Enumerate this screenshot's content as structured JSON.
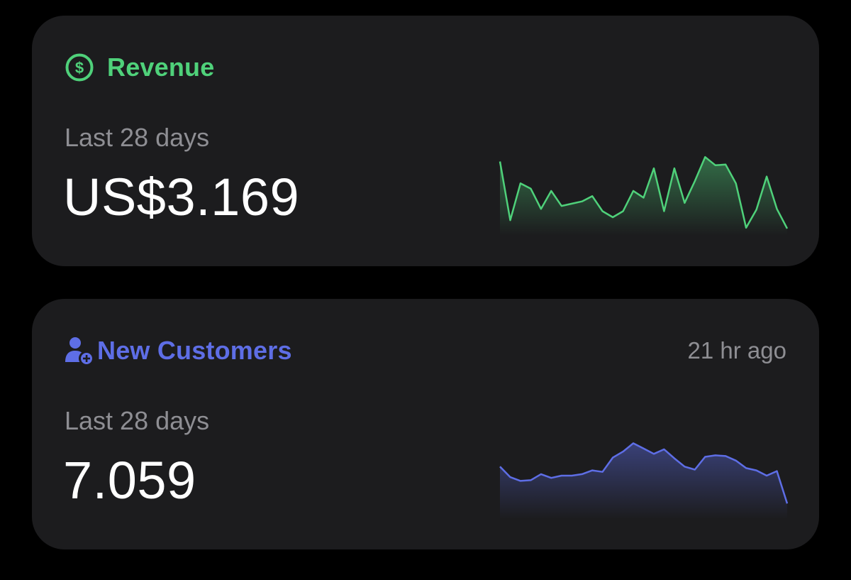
{
  "widgets": {
    "revenue": {
      "title": "Revenue",
      "icon": "dollar-circle-icon",
      "accent_color": "#4fd17a",
      "period": "Last 28 days",
      "value": "US$3.169",
      "trend": [
        0.91,
        0.13,
        0.62,
        0.55,
        0.28,
        0.52,
        0.32,
        0.35,
        0.38,
        0.45,
        0.25,
        0.17,
        0.25,
        0.52,
        0.43,
        0.82,
        0.25,
        0.82,
        0.36,
        0.65,
        0.97,
        0.86,
        0.87,
        0.62,
        0.03,
        0.27,
        0.71,
        0.28,
        0.02
      ]
    },
    "customers": {
      "title": "New Customers",
      "icon": "person-add-icon",
      "accent_color": "#5e6ee6",
      "timestamp": "21 hr ago",
      "period": "Last 28 days",
      "value": "7.059",
      "trend": [
        0.62,
        0.48,
        0.43,
        0.44,
        0.52,
        0.47,
        0.5,
        0.5,
        0.52,
        0.57,
        0.55,
        0.74,
        0.82,
        0.93,
        0.86,
        0.79,
        0.85,
        0.73,
        0.62,
        0.58,
        0.75,
        0.77,
        0.76,
        0.7,
        0.6,
        0.57,
        0.5,
        0.56,
        0.13
      ]
    }
  }
}
